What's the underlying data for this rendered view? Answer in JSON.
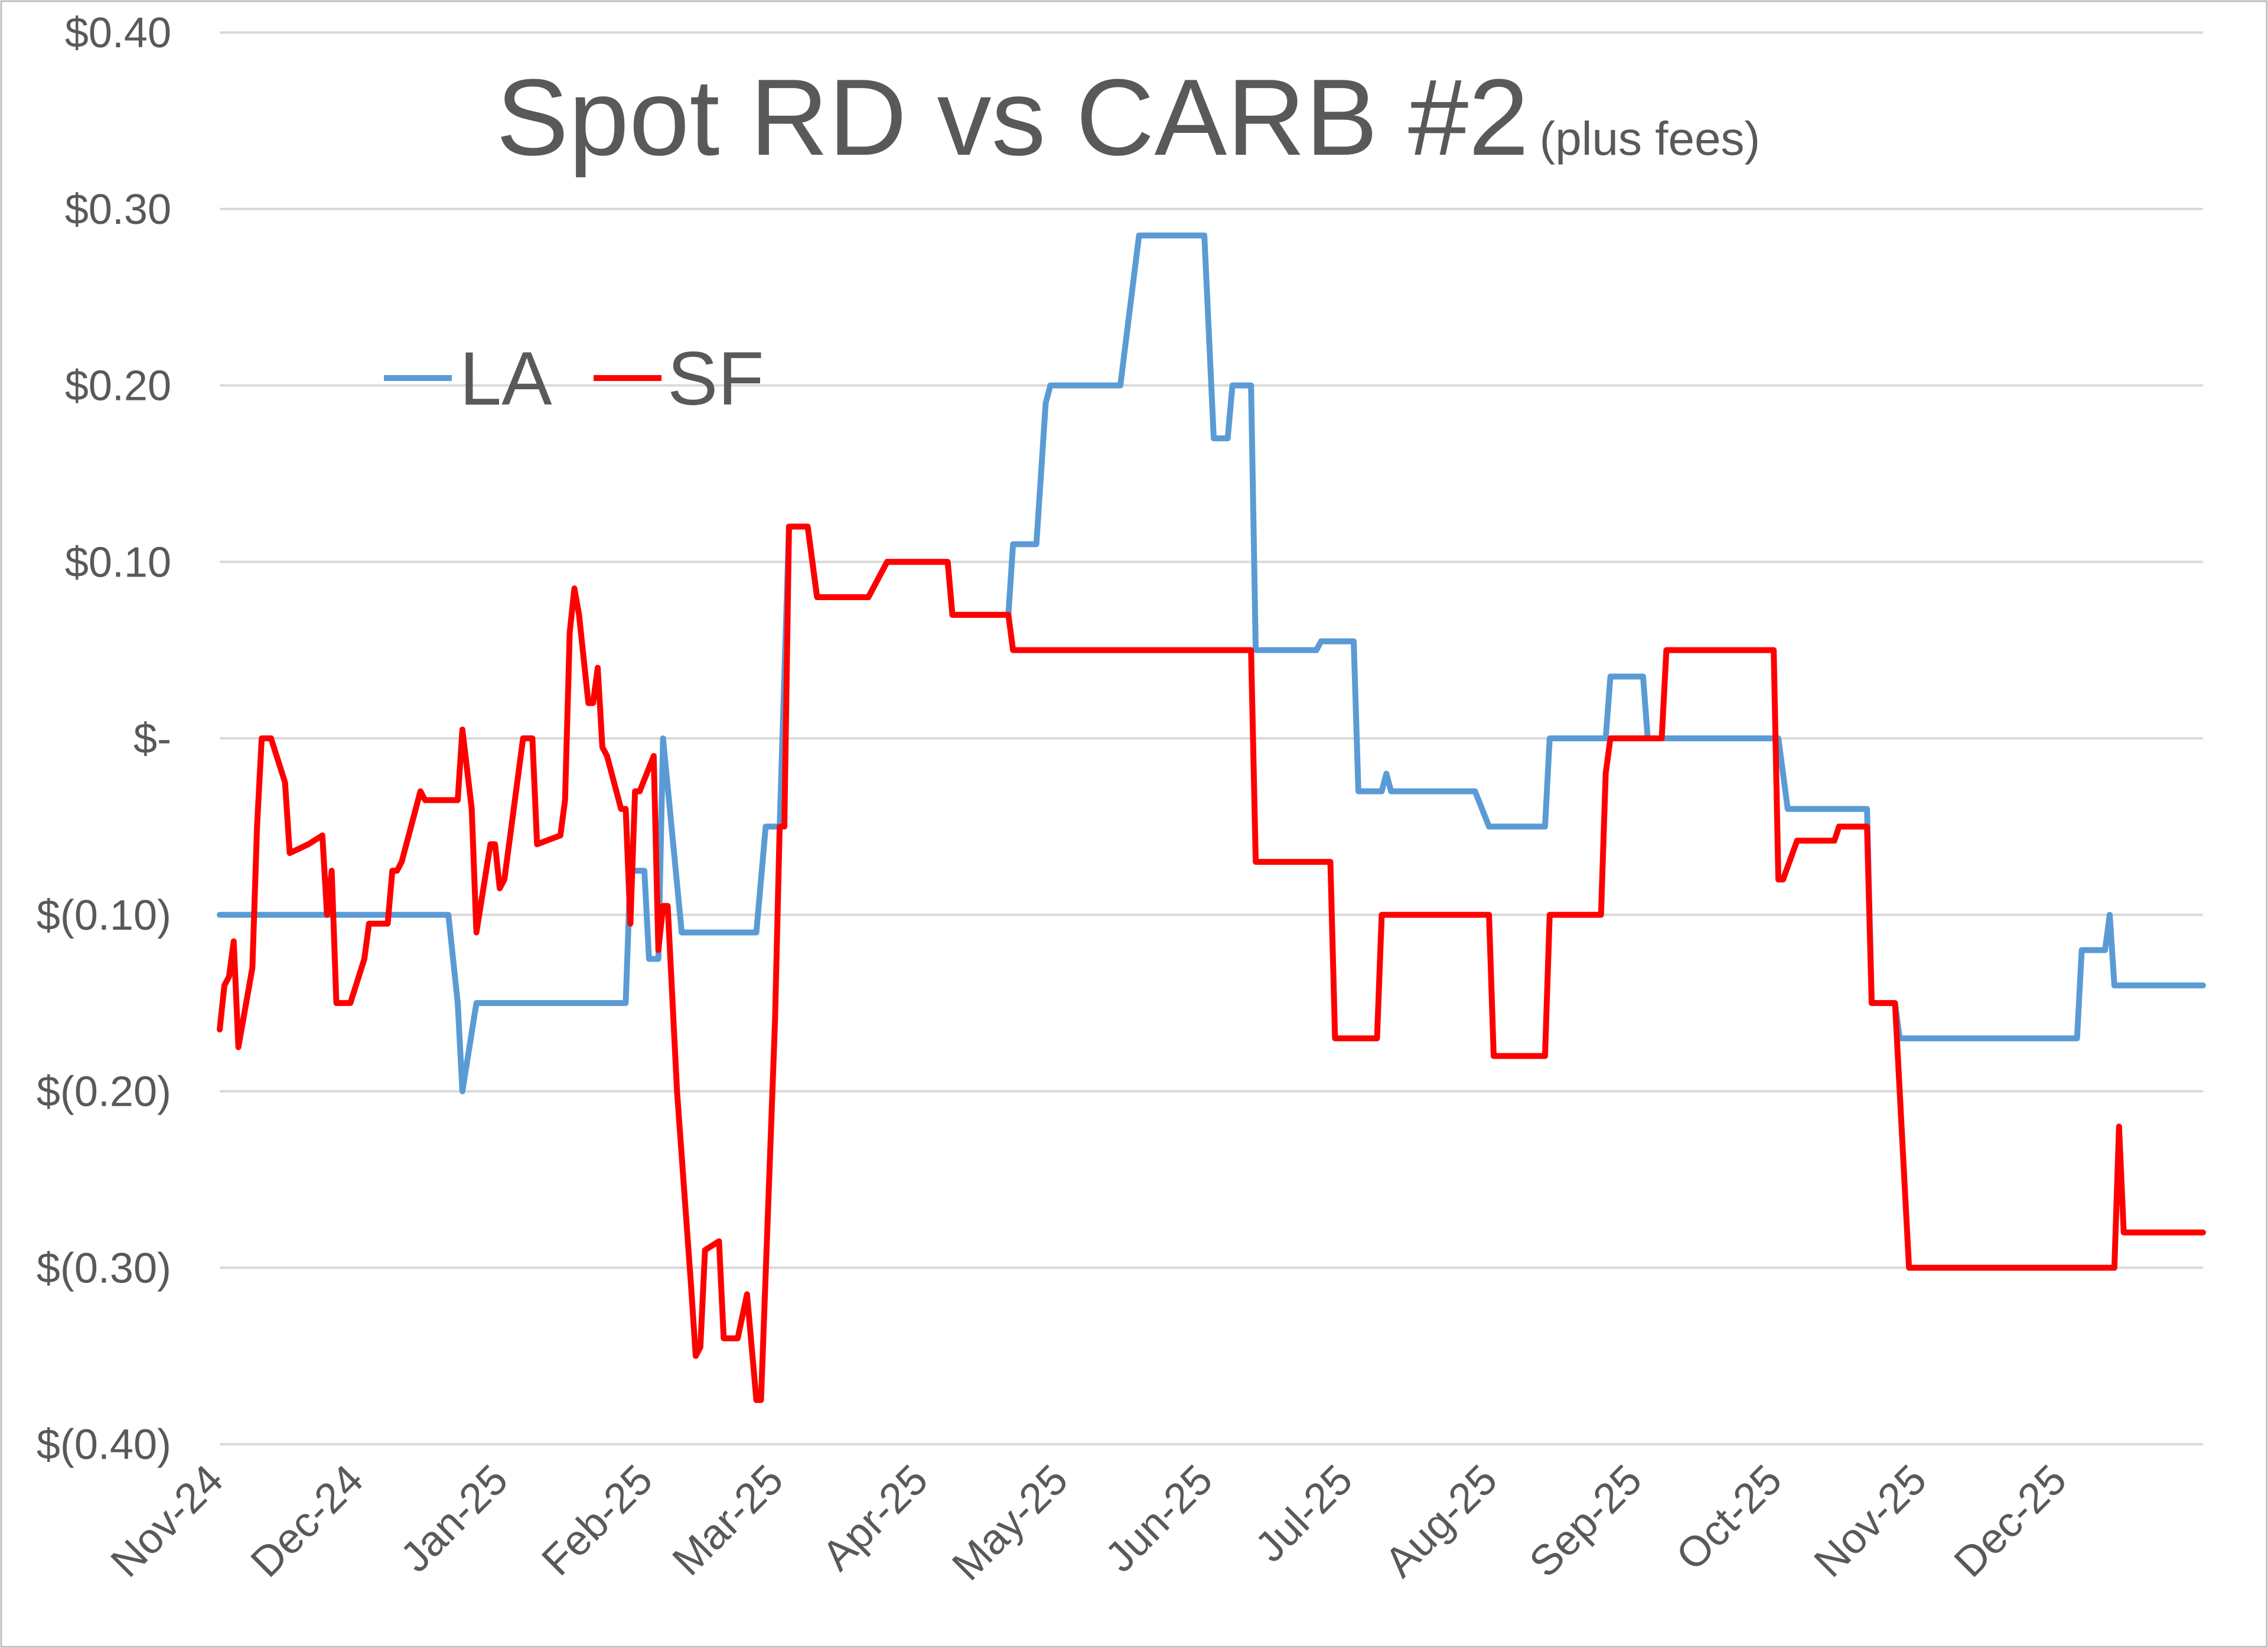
{
  "chart_data": {
    "type": "line",
    "title": "Spot RD vs CARB #2",
    "subtitle": "(plus fees)",
    "xlabel": "",
    "ylabel": "",
    "x_tick_labels": [
      "Nov-24",
      "Dec-24",
      "Jan-25",
      "Feb-25",
      "Mar-25",
      "Apr-25",
      "May-25",
      "Jun-25",
      "Jul-25",
      "Aug-25",
      "Sep-25",
      "Oct-25",
      "Nov-25",
      "Dec-25"
    ],
    "y_tick_values": [
      0.4,
      0.3,
      0.2,
      0.1,
      0.0,
      -0.1,
      -0.2,
      -0.3,
      -0.4
    ],
    "y_tick_labels": [
      "$0.40",
      "$0.30",
      "$0.20",
      "$0.10",
      "$-",
      "$(0.10)",
      "$(0.20)",
      "$(0.30)",
      "$(0.40)"
    ],
    "xlim": [
      "2024-11-01",
      "2025-12-31"
    ],
    "ylim": [
      -0.4,
      0.4
    ],
    "grid": true,
    "legend_position": "top-left",
    "series": [
      {
        "name": "LA",
        "color": "#5b9bd5",
        "points": [
          [
            "2024-11-01",
            -0.1
          ],
          [
            "2024-12-20",
            -0.1
          ],
          [
            "2024-12-22",
            -0.15
          ],
          [
            "2024-12-23",
            -0.2
          ],
          [
            "2024-12-26",
            -0.15
          ],
          [
            "2025-01-27",
            -0.15
          ],
          [
            "2025-01-28",
            -0.075
          ],
          [
            "2025-01-31",
            -0.075
          ],
          [
            "2025-02-01",
            -0.125
          ],
          [
            "2025-02-03",
            -0.125
          ],
          [
            "2025-02-04",
            0.0
          ],
          [
            "2025-02-08",
            -0.11
          ],
          [
            "2025-02-24",
            -0.11
          ],
          [
            "2025-02-26",
            -0.05
          ],
          [
            "2025-03-01",
            -0.05
          ],
          [
            "2025-03-03",
            0.12
          ],
          [
            "2025-03-07",
            0.12
          ],
          [
            "2025-03-09",
            0.08
          ],
          [
            "2025-03-11",
            0.08
          ],
          [
            "2025-03-12",
            0.08
          ],
          [
            "2025-03-20",
            0.08
          ],
          [
            "2025-03-24",
            0.1
          ],
          [
            "2025-04-06",
            0.1
          ],
          [
            "2025-04-07",
            0.07
          ],
          [
            "2025-04-19",
            0.07
          ],
          [
            "2025-04-20",
            0.11
          ],
          [
            "2025-04-25",
            0.11
          ],
          [
            "2025-04-27",
            0.19
          ],
          [
            "2025-04-28",
            0.2
          ],
          [
            "2025-05-13",
            0.2
          ],
          [
            "2025-05-17",
            0.285
          ],
          [
            "2025-05-31",
            0.285
          ],
          [
            "2025-06-02",
            0.17
          ],
          [
            "2025-06-05",
            0.17
          ],
          [
            "2025-06-06",
            0.2
          ],
          [
            "2025-06-10",
            0.2
          ],
          [
            "2025-06-11",
            0.05
          ],
          [
            "2025-06-24",
            0.05
          ],
          [
            "2025-06-25",
            0.055
          ],
          [
            "2025-07-02",
            0.055
          ],
          [
            "2025-07-03",
            -0.03
          ],
          [
            "2025-07-08",
            -0.03
          ],
          [
            "2025-07-09",
            -0.02
          ],
          [
            "2025-07-10",
            -0.03
          ],
          [
            "2025-07-28",
            -0.03
          ],
          [
            "2025-07-31",
            -0.05
          ],
          [
            "2025-08-12",
            -0.05
          ],
          [
            "2025-08-13",
            0.0
          ],
          [
            "2025-08-25",
            0.0
          ],
          [
            "2025-08-26",
            0.035
          ],
          [
            "2025-09-02",
            0.035
          ],
          [
            "2025-09-03",
            0.0
          ],
          [
            "2025-10-01",
            0.0
          ],
          [
            "2025-10-03",
            -0.04
          ],
          [
            "2025-10-20",
            -0.04
          ],
          [
            "2025-10-21",
            -0.15
          ],
          [
            "2025-10-26",
            -0.15
          ],
          [
            "2025-10-27",
            -0.17
          ],
          [
            "2025-12-04",
            -0.17
          ],
          [
            "2025-12-05",
            -0.12
          ],
          [
            "2025-12-10",
            -0.12
          ],
          [
            "2025-12-11",
            -0.1
          ],
          [
            "2025-12-12",
            -0.14
          ],
          [
            "2025-12-31",
            -0.14
          ]
        ]
      },
      {
        "name": "SF",
        "color": "#ff0000",
        "points": [
          [
            "2024-11-01",
            -0.165
          ],
          [
            "2024-11-02",
            -0.14
          ],
          [
            "2024-11-03",
            -0.135
          ],
          [
            "2024-11-04",
            -0.115
          ],
          [
            "2024-11-05",
            -0.175
          ],
          [
            "2024-11-08",
            -0.13
          ],
          [
            "2024-11-09",
            -0.05
          ],
          [
            "2024-11-10",
            0.0
          ],
          [
            "2024-11-12",
            0.0
          ],
          [
            "2024-11-15",
            -0.025
          ],
          [
            "2024-11-16",
            -0.065
          ],
          [
            "2024-11-20",
            -0.06
          ],
          [
            "2024-11-23",
            -0.055
          ],
          [
            "2024-11-24",
            -0.1
          ],
          [
            "2024-11-25",
            -0.075
          ],
          [
            "2024-11-26",
            -0.15
          ],
          [
            "2024-11-29",
            -0.15
          ],
          [
            "2024-12-02",
            -0.125
          ],
          [
            "2024-12-03",
            -0.105
          ],
          [
            "2024-12-07",
            -0.105
          ],
          [
            "2024-12-08",
            -0.075
          ],
          [
            "2024-12-09",
            -0.075
          ],
          [
            "2024-12-10",
            -0.07
          ],
          [
            "2024-12-14",
            -0.03
          ],
          [
            "2024-12-15",
            -0.035
          ],
          [
            "2024-12-22",
            -0.035
          ],
          [
            "2024-12-23",
            0.005
          ],
          [
            "2024-12-25",
            -0.04
          ],
          [
            "2024-12-26",
            -0.11
          ],
          [
            "2024-12-29",
            -0.06
          ],
          [
            "2024-12-30",
            -0.06
          ],
          [
            "2024-12-31",
            -0.085
          ],
          [
            "2025-01-01",
            -0.08
          ],
          [
            "2025-01-03",
            -0.04
          ],
          [
            "2025-01-05",
            0.0
          ],
          [
            "2025-01-07",
            0.0
          ],
          [
            "2025-01-08",
            -0.06
          ],
          [
            "2025-01-13",
            -0.055
          ],
          [
            "2025-01-14",
            -0.035
          ],
          [
            "2025-01-15",
            0.06
          ],
          [
            "2025-01-16",
            0.085
          ],
          [
            "2025-01-17",
            0.07
          ],
          [
            "2025-01-19",
            0.02
          ],
          [
            "2025-01-20",
            0.02
          ],
          [
            "2025-01-21",
            0.04
          ],
          [
            "2025-01-22",
            -0.005
          ],
          [
            "2025-01-23",
            -0.01
          ],
          [
            "2025-01-26",
            -0.04
          ],
          [
            "2025-01-27",
            -0.04
          ],
          [
            "2025-01-28",
            -0.105
          ],
          [
            "2025-01-29",
            -0.03
          ],
          [
            "2025-01-30",
            -0.03
          ],
          [
            "2025-02-02",
            -0.01
          ],
          [
            "2025-02-03",
            -0.12
          ],
          [
            "2025-02-04",
            -0.095
          ],
          [
            "2025-02-05",
            -0.095
          ],
          [
            "2025-02-07",
            -0.2
          ],
          [
            "2025-02-10",
            -0.31
          ],
          [
            "2025-02-11",
            -0.35
          ],
          [
            "2025-02-12",
            -0.345
          ],
          [
            "2025-02-13",
            -0.29
          ],
          [
            "2025-02-16",
            -0.285
          ],
          [
            "2025-02-17",
            -0.34
          ],
          [
            "2025-02-20",
            -0.34
          ],
          [
            "2025-02-22",
            -0.315
          ],
          [
            "2025-02-24",
            -0.375
          ],
          [
            "2025-02-25",
            -0.375
          ],
          [
            "2025-02-28",
            -0.16
          ],
          [
            "2025-03-01",
            -0.05
          ],
          [
            "2025-03-02",
            -0.05
          ],
          [
            "2025-03-03",
            0.12
          ],
          [
            "2025-03-07",
            0.12
          ],
          [
            "2025-03-09",
            0.08
          ],
          [
            "2025-03-11",
            0.08
          ],
          [
            "2025-03-12",
            0.08
          ],
          [
            "2025-03-20",
            0.08
          ],
          [
            "2025-03-24",
            0.1
          ],
          [
            "2025-04-06",
            0.1
          ],
          [
            "2025-04-07",
            0.07
          ],
          [
            "2025-04-19",
            0.07
          ],
          [
            "2025-04-20",
            0.05
          ],
          [
            "2025-06-10",
            0.05
          ],
          [
            "2025-06-11",
            -0.07
          ],
          [
            "2025-06-27",
            -0.07
          ],
          [
            "2025-06-28",
            -0.17
          ],
          [
            "2025-07-07",
            -0.17
          ],
          [
            "2025-07-08",
            -0.1
          ],
          [
            "2025-07-31",
            -0.1
          ],
          [
            "2025-08-01",
            -0.18
          ],
          [
            "2025-08-12",
            -0.18
          ],
          [
            "2025-08-13",
            -0.1
          ],
          [
            "2025-08-24",
            -0.1
          ],
          [
            "2025-08-25",
            -0.02
          ],
          [
            "2025-08-26",
            0.0
          ],
          [
            "2025-09-06",
            0.0
          ],
          [
            "2025-09-07",
            0.05
          ],
          [
            "2025-09-30",
            0.05
          ],
          [
            "2025-10-01",
            -0.08
          ],
          [
            "2025-10-02",
            -0.08
          ],
          [
            "2025-10-05",
            -0.058
          ],
          [
            "2025-10-13",
            -0.058
          ],
          [
            "2025-10-14",
            -0.05
          ],
          [
            "2025-10-20",
            -0.05
          ],
          [
            "2025-10-21",
            -0.15
          ],
          [
            "2025-10-26",
            -0.15
          ],
          [
            "2025-10-27",
            -0.2
          ],
          [
            "2025-10-29",
            -0.3
          ],
          [
            "2025-12-12",
            -0.3
          ],
          [
            "2025-12-13",
            -0.22
          ],
          [
            "2025-12-14",
            -0.28
          ],
          [
            "2025-12-31",
            -0.28
          ]
        ]
      }
    ]
  }
}
